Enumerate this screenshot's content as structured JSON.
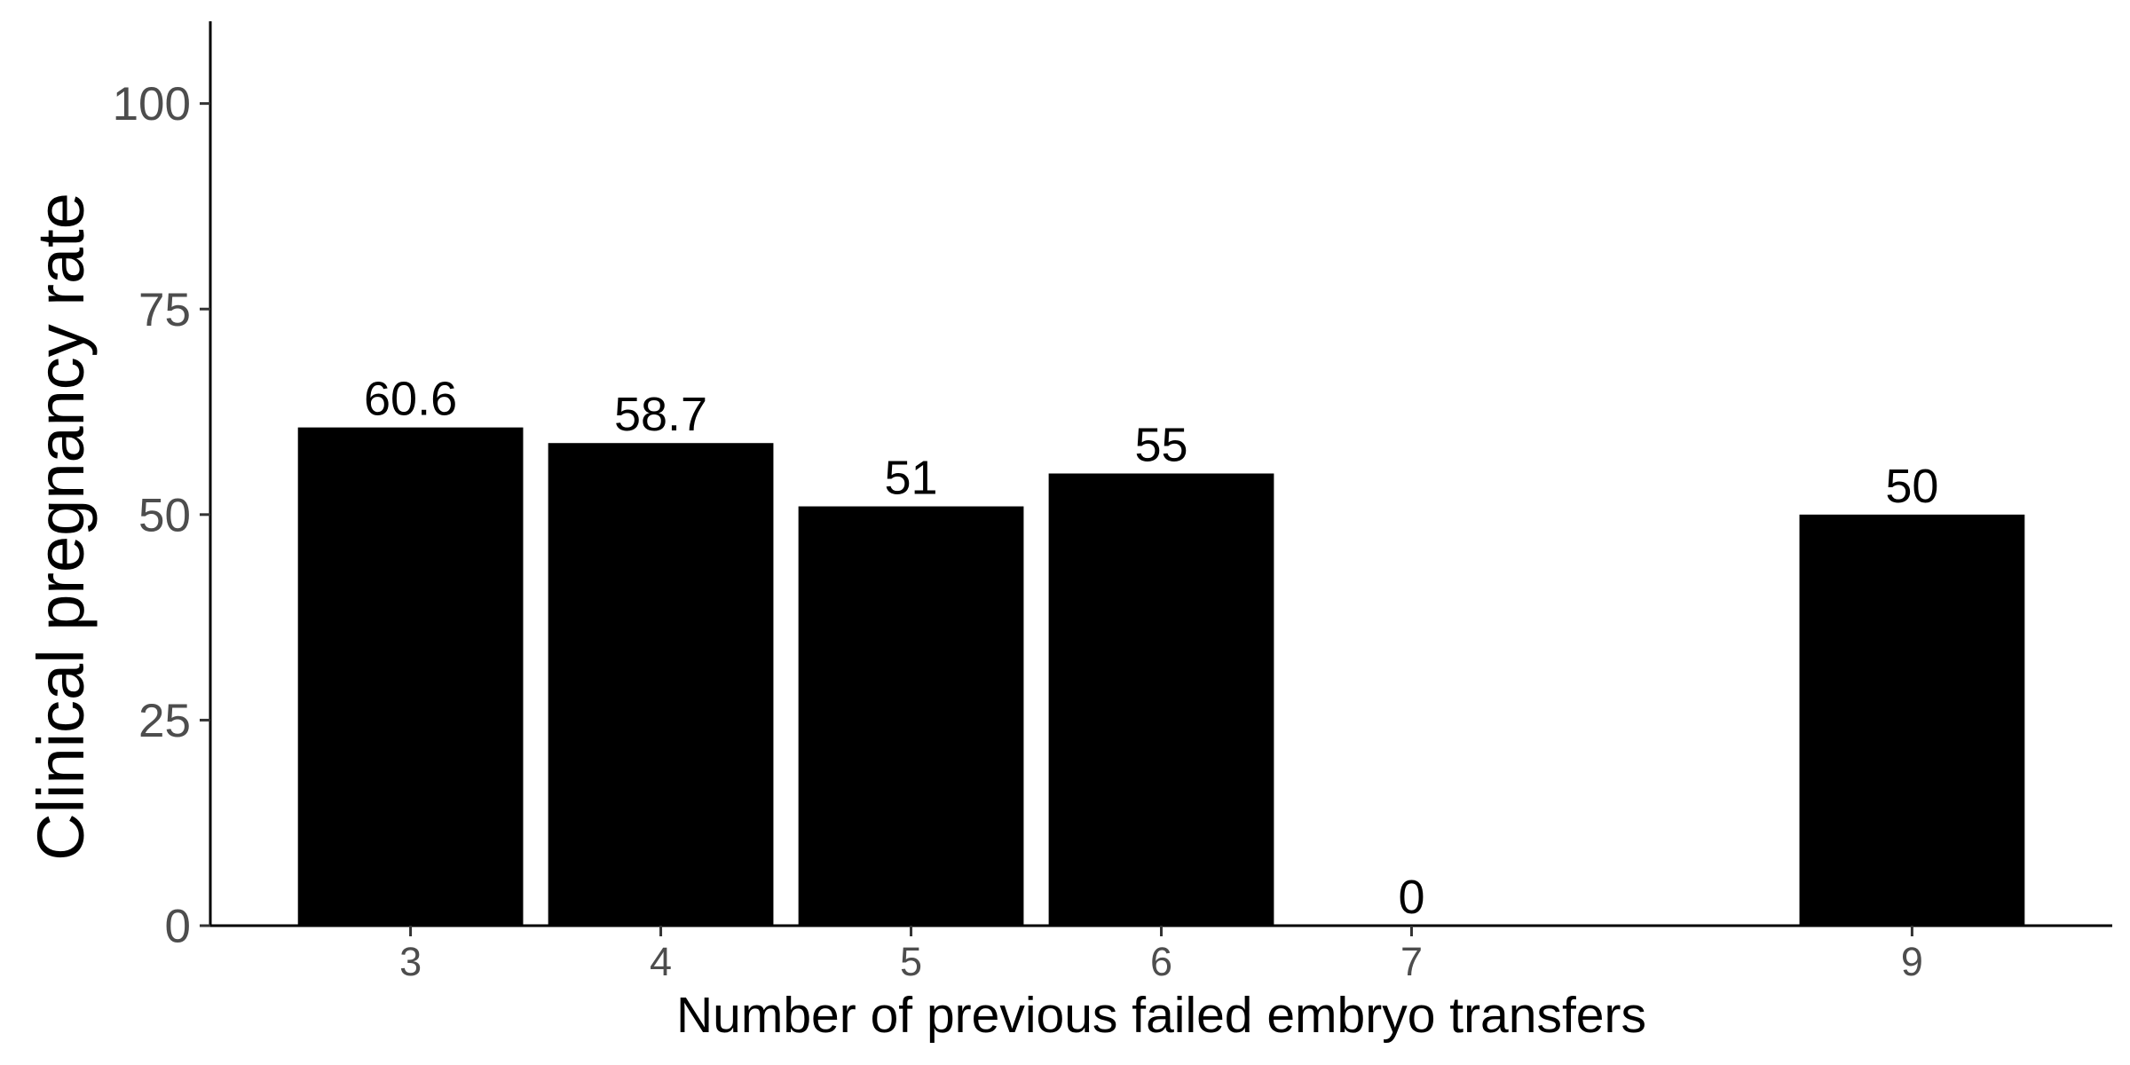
{
  "chart_data": {
    "type": "bar",
    "x": [
      3,
      4,
      5,
      6,
      7,
      9
    ],
    "values": [
      60.6,
      58.7,
      51,
      55,
      0,
      50
    ],
    "data_labels": [
      "60.6",
      "58.7",
      "51",
      "55",
      "0",
      "50"
    ],
    "xlabel": "Number of previous failed embryo transfers",
    "ylabel": "Clinical pregnancy rate",
    "xticks": [
      "3",
      "4",
      "5",
      "6",
      "7",
      "9"
    ],
    "yticks": [
      0,
      25,
      50,
      75,
      100
    ],
    "ylim": [
      0,
      110
    ],
    "xlim": [
      2.2,
      9.8
    ],
    "grid": false,
    "legend": "none",
    "bar_color": "#000000"
  }
}
